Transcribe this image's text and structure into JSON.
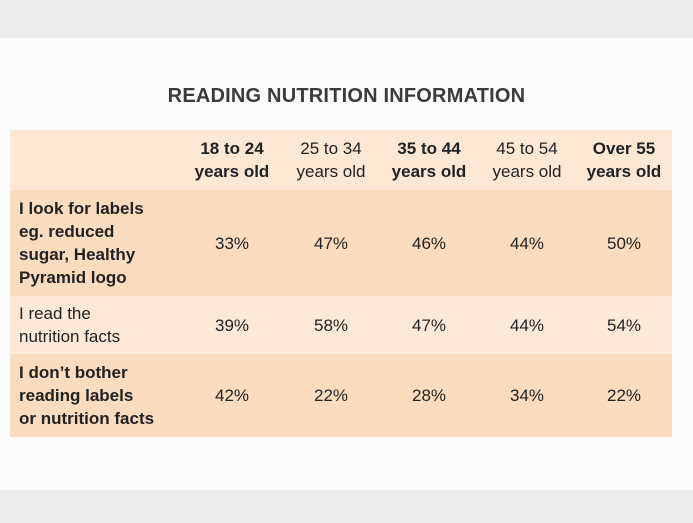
{
  "chart_data": {
    "type": "table",
    "title": "READING NUTRITION INFORMATION",
    "columns": [
      {
        "line1": "18 to 24",
        "line2": "years old",
        "bold": true
      },
      {
        "line1": "25 to 34",
        "line2": "years old",
        "bold": false
      },
      {
        "line1": "35 to 44",
        "line2": "years old",
        "bold": true
      },
      {
        "line1": "45 to 54",
        "line2": "years old",
        "bold": false
      },
      {
        "line1": "Over 55",
        "line2": "years old",
        "bold": true
      }
    ],
    "rows": [
      {
        "label_lines": [
          "I look for labels",
          "eg. reduced",
          "sugar, Healthy",
          "Pyramid logo"
        ],
        "bold": true,
        "values": [
          "33%",
          "47%",
          "46%",
          "44%",
          "50%"
        ]
      },
      {
        "label_lines": [
          "I read the",
          "nutrition facts"
        ],
        "bold": false,
        "values": [
          "39%",
          "58%",
          "47%",
          "44%",
          "54%"
        ]
      },
      {
        "label_lines": [
          "I don’t bother",
          "reading labels",
          "or nutrition facts"
        ],
        "bold": true,
        "values": [
          "42%",
          "22%",
          "28%",
          "34%",
          "22%"
        ]
      }
    ]
  },
  "colors": {
    "header_bg": "#fde8d5",
    "row_dark": "#fbdcbf",
    "row_light": "#fde9d8"
  }
}
